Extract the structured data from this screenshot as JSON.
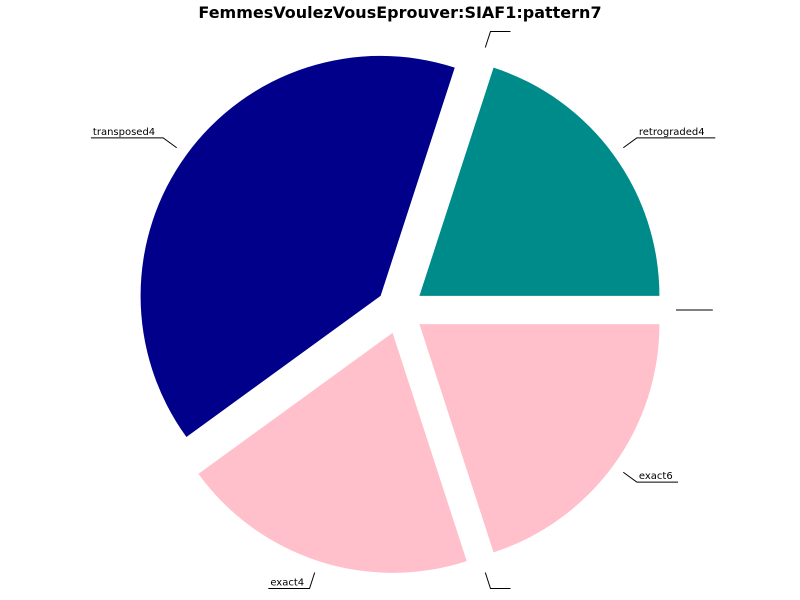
{
  "chart_data": {
    "type": "pie",
    "title": "FemmesVoulezVousEprouver:SIAF1:pattern7",
    "start_angle_deg": 0,
    "direction": "counterclockwise",
    "explode": true,
    "slices": [
      {
        "label": "retrograded4",
        "value": 1,
        "color": "#008b8b"
      },
      {
        "label": "",
        "value": 0,
        "color": "#008b8b"
      },
      {
        "label": "transposed4",
        "value": 2,
        "color": "#00008b"
      },
      {
        "label": "exact4",
        "value": 1,
        "color": "#ffc0cb"
      },
      {
        "label": "",
        "value": 0,
        "color": "#ffc0cb"
      },
      {
        "label": "exact6",
        "value": 1,
        "color": "#ffc0cb"
      },
      {
        "label": "",
        "value": 0,
        "color": "#ffc0cb"
      }
    ]
  }
}
